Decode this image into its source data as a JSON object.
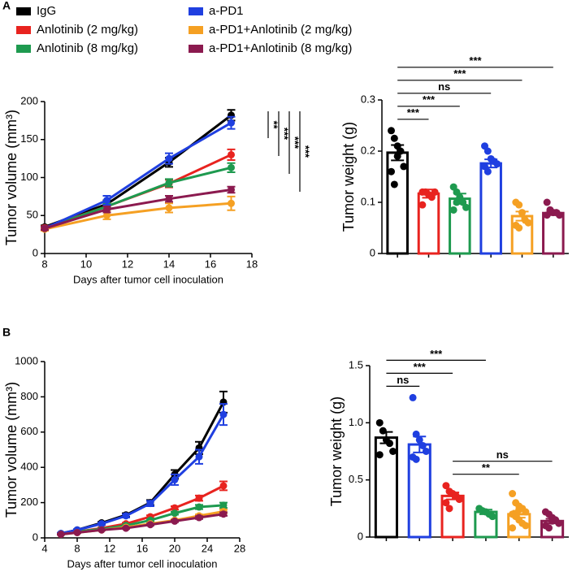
{
  "panels": [
    "A",
    "B"
  ],
  "legend": [
    {
      "name": "IgG",
      "color": "#000000"
    },
    {
      "name": "Anlotinib (2 mg/kg)",
      "color": "#e8231f"
    },
    {
      "name": "Anlotinib (8 mg/kg)",
      "color": "#1e9a4f"
    },
    {
      "name": "a-PD1",
      "color": "#1f3fe0"
    },
    {
      "name": "a-PD1+Anlotinib (2 mg/kg)",
      "color": "#f5a023"
    },
    {
      "name": "a-PD1+Anlotinib (8 mg/kg)",
      "color": "#8b1a4f"
    }
  ],
  "chart_data": [
    {
      "type": "line",
      "xlabel": "Days after tumor cell inoculation",
      "ylabel": "Tumor volume (mm³)",
      "x": [
        8,
        11,
        14,
        17
      ],
      "xlim": [
        8,
        18
      ],
      "xticks": [
        8,
        10,
        12,
        14,
        16,
        18
      ],
      "ylim": [
        0,
        200
      ],
      "yticks": [
        0,
        50,
        100,
        150,
        200
      ],
      "series": [
        {
          "color": "#000000",
          "values": [
            35,
            65,
            120,
            182
          ],
          "errors": [
            2,
            5,
            6,
            7
          ]
        },
        {
          "color": "#e8231f",
          "values": [
            34,
            62,
            92,
            130
          ],
          "errors": [
            2,
            4,
            5,
            7
          ]
        },
        {
          "color": "#1e9a4f",
          "values": [
            33,
            62,
            93,
            113
          ],
          "errors": [
            2,
            4,
            5,
            6
          ]
        },
        {
          "color": "#1f3fe0",
          "values": [
            33,
            70,
            125,
            172
          ],
          "errors": [
            2,
            6,
            7,
            8
          ]
        },
        {
          "color": "#f5a023",
          "values": [
            32,
            50,
            60,
            66
          ],
          "errors": [
            2,
            5,
            6,
            9
          ]
        },
        {
          "color": "#8b1a4f",
          "values": [
            33,
            58,
            72,
            84
          ],
          "errors": [
            2,
            4,
            4,
            4
          ]
        }
      ],
      "annotations": [
        "**",
        "***",
        "***",
        "***"
      ]
    },
    {
      "type": "bar",
      "ylabel": "Tumor weight (g)",
      "categories": [
        null,
        null,
        null,
        null,
        null,
        null
      ],
      "values": [
        0.197,
        0.117,
        0.107,
        0.176,
        0.073,
        0.079
      ],
      "errors": [
        0.015,
        0.008,
        0.01,
        0.008,
        0.009,
        0.004
      ],
      "colors": [
        "#000000",
        "#e8231f",
        "#1e9a4f",
        "#1f3fe0",
        "#f5a023",
        "#8b1a4f"
      ],
      "points": [
        [
          0.24,
          0.225,
          0.21,
          0.2,
          0.17,
          0.16,
          0.135,
          0.19
        ],
        [
          0.12,
          0.12,
          0.115,
          0.11,
          0.12,
          0.095
        ],
        [
          0.13,
          0.12,
          0.11,
          0.1,
          0.09,
          0.085,
          0.1
        ],
        [
          0.21,
          0.2,
          0.185,
          0.18,
          0.175,
          0.17,
          0.16
        ],
        [
          0.1,
          0.095,
          0.08,
          0.065,
          0.06,
          0.055,
          0.05
        ],
        [
          0.1,
          0.085,
          0.08,
          0.08,
          0.075,
          0.075,
          0.085
        ]
      ],
      "ylim": [
        0,
        0.3
      ],
      "yticks": [
        0,
        0.1,
        0.2,
        0.3
      ],
      "annotations": [
        {
          "label": "***",
          "between": [
            0,
            1
          ]
        },
        {
          "label": "***",
          "between": [
            0,
            2
          ]
        },
        {
          "label": "ns",
          "between": [
            0,
            3
          ]
        },
        {
          "label": "***",
          "between": [
            0,
            4
          ]
        },
        {
          "label": "***",
          "between": [
            0,
            5
          ]
        }
      ]
    },
    {
      "type": "line",
      "xlabel": "Days after tumor cell inoculation",
      "ylabel": "Tumor volume (mm³)",
      "x": [
        6,
        8,
        11,
        14,
        17,
        20,
        23,
        26
      ],
      "xlim": [
        4,
        28
      ],
      "xticks": [
        4,
        8,
        12,
        16,
        20,
        24,
        28
      ],
      "ylim": [
        0,
        1000
      ],
      "yticks": [
        0,
        200,
        400,
        600,
        800,
        1000
      ],
      "series": [
        {
          "color": "#000000",
          "values": [
            25,
            45,
            85,
            130,
            200,
            360,
            510,
            770
          ],
          "errors": [
            3,
            4,
            6,
            10,
            15,
            25,
            35,
            60
          ]
        },
        {
          "color": "#e8231f",
          "values": [
            22,
            35,
            55,
            80,
            120,
            170,
            225,
            295
          ],
          "errors": [
            2,
            3,
            4,
            6,
            8,
            10,
            15,
            25
          ]
        },
        {
          "color": "#1e9a4f",
          "values": [
            22,
            35,
            50,
            70,
            100,
            140,
            175,
            185
          ],
          "errors": [
            2,
            3,
            4,
            5,
            6,
            8,
            12,
            15
          ]
        },
        {
          "color": "#1f3fe0",
          "values": [
            25,
            45,
            80,
            125,
            195,
            330,
            460,
            700
          ],
          "errors": [
            3,
            4,
            6,
            10,
            15,
            30,
            40,
            60
          ]
        },
        {
          "color": "#f5a023",
          "values": [
            20,
            30,
            45,
            60,
            80,
            100,
            125,
            150
          ],
          "errors": [
            2,
            3,
            3,
            4,
            5,
            6,
            8,
            10
          ]
        },
        {
          "color": "#8b1a4f",
          "values": [
            20,
            30,
            45,
            55,
            75,
            95,
            115,
            135
          ],
          "errors": [
            2,
            3,
            3,
            4,
            5,
            6,
            8,
            10
          ]
        }
      ]
    },
    {
      "type": "bar",
      "ylabel": "Tumor weight (g)",
      "categories": [
        null,
        null,
        null,
        null,
        null,
        null
      ],
      "values": [
        0.87,
        0.81,
        0.36,
        0.22,
        0.2,
        0.14
      ],
      "errors": [
        0.05,
        0.07,
        0.03,
        0.02,
        0.03,
        0.02
      ],
      "colors": [
        "#000000",
        "#1f3fe0",
        "#e8231f",
        "#1e9a4f",
        "#f5a023",
        "#8b1a4f"
      ],
      "points": [
        [
          1.0,
          0.93,
          0.85,
          0.82,
          0.75,
          0.72
        ],
        [
          1.22,
          0.9,
          0.85,
          0.8,
          0.75,
          0.7,
          0.68
        ],
        [
          0.45,
          0.4,
          0.38,
          0.36,
          0.33,
          0.3,
          0.25
        ],
        [
          0.25,
          0.23,
          0.22,
          0.2,
          0.18
        ],
        [
          0.38,
          0.3,
          0.27,
          0.25,
          0.22,
          0.2,
          0.18,
          0.15,
          0.12,
          0.1,
          0.08,
          0.2,
          0.24
        ],
        [
          0.22,
          0.2,
          0.17,
          0.15,
          0.12,
          0.1,
          0.08,
          0.14
        ]
      ],
      "ylim": [
        0,
        1.5
      ],
      "yticks": [
        0,
        0.5,
        {
          "value": 1,
          "label": "1.0"
        },
        1.5
      ],
      "annotations": [
        {
          "label": "**",
          "between": [
            2,
            4
          ]
        },
        {
          "label": "ns",
          "between": [
            2,
            5
          ]
        },
        {
          "label": "ns",
          "between": [
            0,
            1
          ]
        },
        {
          "label": "***",
          "between": [
            0,
            2
          ]
        },
        {
          "label": "***",
          "between": [
            0,
            3
          ]
        }
      ]
    }
  ]
}
